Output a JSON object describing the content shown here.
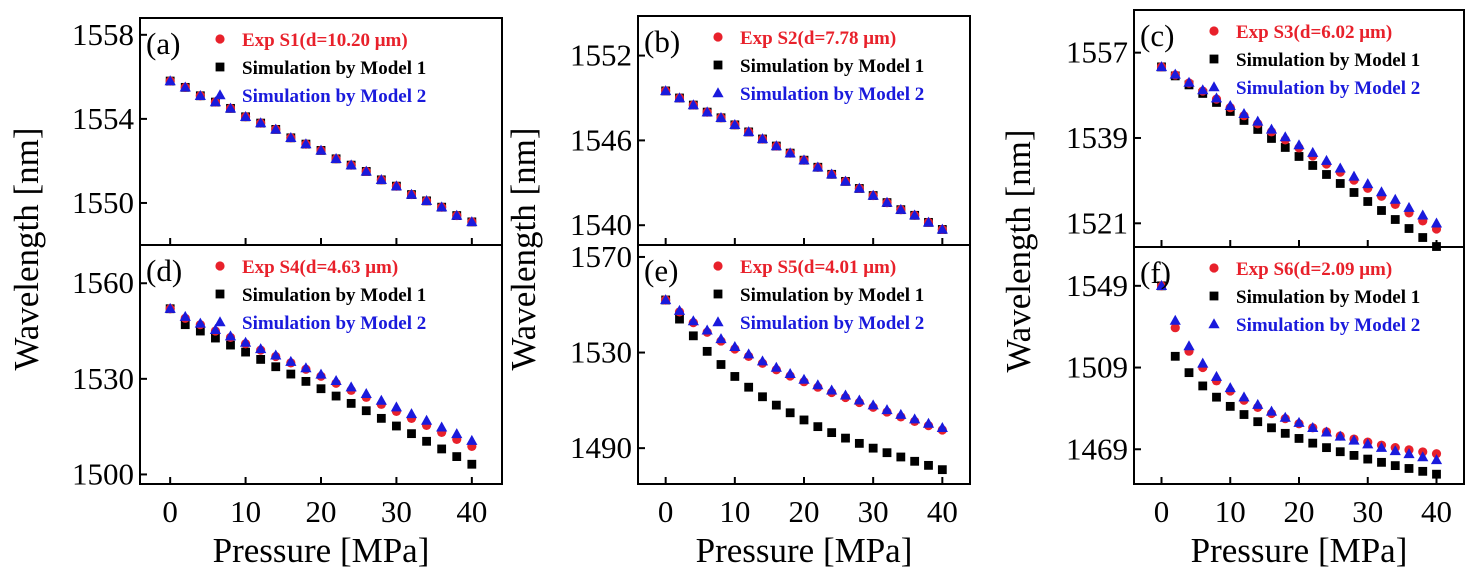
{
  "figure": {
    "xlabel": "Pressure [MPa]",
    "ylabel": "Wavelength [nm]",
    "series_names": [
      "Exp",
      "Simulation by Model 1",
      "Simulation by Model 2"
    ],
    "colors": {
      "exp": "#e8212b",
      "model1": "#000000",
      "model2": "#1a1adc"
    }
  },
  "chart_data": [
    {
      "type": "scatter",
      "panel": "(a)",
      "xlabel": "Pressure [MPa]",
      "ylabel": "Wavelength [nm]",
      "legend": [
        "Exp S1(d=10.20 μm)",
        "Simulation by Model 1",
        "Simulation by Model 2"
      ],
      "xlim": [
        -4,
        44
      ],
      "ylim": [
        1548,
        1558.8
      ],
      "xticks": [
        0,
        10,
        20,
        30,
        40
      ],
      "yticks": [
        1550,
        1554,
        1558
      ],
      "x": [
        0,
        2,
        4,
        6,
        8,
        10,
        12,
        14,
        16,
        18,
        20,
        22,
        24,
        26,
        28,
        30,
        32,
        34,
        36,
        38,
        40
      ],
      "series": [
        {
          "name": "Exp",
          "values": [
            1555.8,
            1555.5,
            1555.1,
            1554.8,
            1554.5,
            1554.1,
            1553.8,
            1553.5,
            1553.1,
            1552.8,
            1552.5,
            1552.1,
            1551.8,
            1551.5,
            1551.1,
            1550.8,
            1550.4,
            1550.1,
            1549.8,
            1549.4,
            1549.1
          ]
        },
        {
          "name": "Simulation by Model 1",
          "values": [
            1555.8,
            1555.5,
            1555.1,
            1554.8,
            1554.5,
            1554.1,
            1553.8,
            1553.5,
            1553.1,
            1552.8,
            1552.5,
            1552.1,
            1551.8,
            1551.5,
            1551.1,
            1550.8,
            1550.4,
            1550.1,
            1549.8,
            1549.4,
            1549.1
          ]
        },
        {
          "name": "Simulation by Model 2",
          "values": [
            1555.8,
            1555.5,
            1555.1,
            1554.8,
            1554.5,
            1554.1,
            1553.8,
            1553.5,
            1553.1,
            1552.8,
            1552.5,
            1552.1,
            1551.8,
            1551.5,
            1551.1,
            1550.8,
            1550.4,
            1550.1,
            1549.8,
            1549.4,
            1549.1
          ]
        }
      ]
    },
    {
      "type": "scatter",
      "panel": "(b)",
      "xlabel": "Pressure [MPa]",
      "ylabel": "Wavelength [nm]",
      "legend": [
        "Exp S2(d=7.78 μm)",
        "Simulation by Model 1",
        "Simulation by Model 2"
      ],
      "xlim": [
        -4,
        44
      ],
      "ylim": [
        1538.6,
        1554.8
      ],
      "xticks": [
        0,
        10,
        20,
        30,
        40
      ],
      "yticks": [
        1540,
        1546,
        1552
      ],
      "x": [
        0,
        2,
        4,
        6,
        8,
        10,
        12,
        14,
        16,
        18,
        20,
        22,
        24,
        26,
        28,
        30,
        32,
        34,
        36,
        38,
        40
      ],
      "series": [
        {
          "name": "Exp",
          "values": [
            1549.5,
            1549.0,
            1548.5,
            1548.0,
            1547.6,
            1547.1,
            1546.6,
            1546.1,
            1545.6,
            1545.1,
            1544.6,
            1544.1,
            1543.6,
            1543.1,
            1542.6,
            1542.1,
            1541.6,
            1541.1,
            1540.7,
            1540.2,
            1539.7
          ]
        },
        {
          "name": "Simulation by Model 1",
          "values": [
            1549.5,
            1549.0,
            1548.5,
            1548.0,
            1547.6,
            1547.1,
            1546.6,
            1546.1,
            1545.6,
            1545.1,
            1544.6,
            1544.1,
            1543.6,
            1543.1,
            1542.6,
            1542.1,
            1541.6,
            1541.1,
            1540.7,
            1540.2,
            1539.7
          ]
        },
        {
          "name": "Simulation by Model 2",
          "values": [
            1549.5,
            1549.0,
            1548.5,
            1548.0,
            1547.6,
            1547.1,
            1546.6,
            1546.1,
            1545.6,
            1545.1,
            1544.6,
            1544.1,
            1543.6,
            1543.1,
            1542.6,
            1542.1,
            1541.6,
            1541.1,
            1540.7,
            1540.2,
            1539.7
          ]
        }
      ]
    },
    {
      "type": "scatter",
      "panel": "(c)",
      "xlabel": "Pressure [MPa]",
      "ylabel": "Wavelength [nm]",
      "legend": [
        "Exp S3(d=6.02 μm)",
        "Simulation by Model 1",
        "Simulation by Model 2"
      ],
      "xlim": [
        -4,
        44
      ],
      "ylim": [
        1516,
        1566
      ],
      "xticks": [
        0,
        10,
        20,
        30,
        40
      ],
      "yticks": [
        1521,
        1539,
        1557
      ],
      "x": [
        0,
        2,
        4,
        6,
        8,
        10,
        12,
        14,
        16,
        18,
        20,
        22,
        24,
        26,
        28,
        30,
        32,
        34,
        36,
        38,
        40
      ],
      "series": [
        {
          "name": "Exp",
          "values": [
            1554.0,
            1552.3,
            1550.6,
            1548.9,
            1547.2,
            1545.4,
            1543.7,
            1542.0,
            1540.3,
            1538.6,
            1536.9,
            1535.2,
            1533.5,
            1531.8,
            1530.1,
            1528.4,
            1526.7,
            1525.0,
            1523.2,
            1521.5,
            1519.8
          ]
        },
        {
          "name": "Simulation by Model 1",
          "values": [
            1554.0,
            1552.1,
            1550.2,
            1548.4,
            1546.5,
            1544.6,
            1542.7,
            1540.8,
            1538.9,
            1537.0,
            1535.1,
            1533.2,
            1531.3,
            1529.4,
            1527.5,
            1525.6,
            1523.7,
            1521.8,
            1519.9,
            1518.0,
            1516.1
          ]
        },
        {
          "name": "Simulation by Model 2",
          "values": [
            1554.0,
            1552.4,
            1550.7,
            1549.1,
            1547.4,
            1545.8,
            1544.1,
            1542.5,
            1540.8,
            1539.2,
            1537.5,
            1535.9,
            1534.2,
            1532.6,
            1530.9,
            1529.3,
            1527.6,
            1526.0,
            1524.3,
            1522.7,
            1521.0
          ]
        }
      ]
    },
    {
      "type": "scatter",
      "panel": "(d)",
      "xlabel": "Pressure [MPa]",
      "ylabel": "Wavelength [nm]",
      "legend": [
        "Exp S4(d=4.63 μm)",
        "Simulation by Model 1",
        "Simulation by Model 2"
      ],
      "xlim": [
        -4,
        44
      ],
      "ylim": [
        1497,
        1572
      ],
      "xticks": [
        0,
        10,
        20,
        30,
        40
      ],
      "yticks": [
        1500,
        1530,
        1560
      ],
      "x": [
        0,
        2,
        4,
        6,
        8,
        10,
        12,
        14,
        16,
        18,
        20,
        22,
        24,
        26,
        28,
        30,
        32,
        34,
        36,
        38,
        40
      ],
      "series": [
        {
          "name": "Exp",
          "values": [
            1552.0,
            1549.0,
            1547.0,
            1545.0,
            1543.0,
            1541.0,
            1539.0,
            1537.0,
            1535.0,
            1533.0,
            1530.8,
            1528.6,
            1526.4,
            1524.2,
            1522.0,
            1519.8,
            1517.6,
            1515.4,
            1513.2,
            1511.0,
            1508.8
          ]
        },
        {
          "name": "Simulation by Model 1",
          "values": [
            1552.0,
            1547.0,
            1545.0,
            1542.8,
            1540.6,
            1538.4,
            1536.1,
            1533.8,
            1531.5,
            1529.2,
            1526.9,
            1524.6,
            1522.3,
            1520.0,
            1517.6,
            1515.2,
            1512.8,
            1510.4,
            1508.0,
            1505.6,
            1503.2
          ]
        },
        {
          "name": "Simulation by Model 2",
          "values": [
            1552.0,
            1549.5,
            1547.4,
            1545.4,
            1543.4,
            1541.4,
            1539.4,
            1537.4,
            1535.4,
            1533.4,
            1531.4,
            1529.4,
            1527.4,
            1525.3,
            1523.2,
            1521.1,
            1519.0,
            1516.9,
            1514.8,
            1512.7,
            1510.6
          ]
        }
      ]
    },
    {
      "type": "scatter",
      "panel": "(e)",
      "xlabel": "Pressure [MPa]",
      "ylabel": "Wavelength [nm]",
      "legend": [
        "Exp S5(d=4.01 μm)",
        "Simulation by Model 1",
        "Simulation by Model 2"
      ],
      "xlim": [
        -4,
        44
      ],
      "ylim": [
        1475,
        1575
      ],
      "xticks": [
        0,
        10,
        20,
        30,
        40
      ],
      "yticks": [
        1490,
        1530,
        1570
      ],
      "x": [
        0,
        2,
        4,
        6,
        8,
        10,
        12,
        14,
        16,
        18,
        20,
        22,
        24,
        26,
        28,
        30,
        32,
        34,
        36,
        38,
        40
      ],
      "series": [
        {
          "name": "Exp",
          "values": [
            1552.0,
            1547.0,
            1542.5,
            1538.5,
            1534.8,
            1531.5,
            1528.4,
            1525.5,
            1522.8,
            1520.2,
            1517.8,
            1515.5,
            1513.3,
            1511.2,
            1509.1,
            1507.1,
            1505.1,
            1503.1,
            1501.2,
            1499.4,
            1497.6
          ]
        },
        {
          "name": "Simulation by Model 1",
          "values": [
            1552.0,
            1544.0,
            1537.0,
            1530.5,
            1525.0,
            1520.0,
            1515.5,
            1511.5,
            1508.0,
            1504.8,
            1501.8,
            1499.0,
            1496.5,
            1494.2,
            1492.0,
            1490.0,
            1488.1,
            1486.3,
            1484.5,
            1482.8,
            1481.0
          ]
        },
        {
          "name": "Simulation by Model 2",
          "values": [
            1552.0,
            1547.5,
            1543.2,
            1539.3,
            1535.7,
            1532.4,
            1529.3,
            1526.4,
            1523.7,
            1521.1,
            1518.7,
            1516.4,
            1514.2,
            1512.1,
            1510.0,
            1508.0,
            1506.0,
            1504.0,
            1502.1,
            1500.3,
            1498.5
          ]
        }
      ]
    },
    {
      "type": "scatter",
      "panel": "(f)",
      "xlabel": "Pressure [MPa]",
      "ylabel": "Wavelength [nm]",
      "legend": [
        "Exp S6(d=2.09 μm)",
        "Simulation by Model 1",
        "Simulation by Model 2"
      ],
      "xlim": [
        -4,
        44
      ],
      "ylim": [
        1452,
        1568
      ],
      "xticks": [
        0,
        10,
        20,
        30,
        40
      ],
      "yticks": [
        1469,
        1509,
        1549
      ],
      "x": [
        0,
        2,
        4,
        6,
        8,
        10,
        12,
        14,
        16,
        18,
        20,
        22,
        24,
        26,
        28,
        30,
        32,
        34,
        36,
        38,
        40
      ],
      "series": [
        {
          "name": "Exp",
          "values": [
            1549.0,
            1528.5,
            1517.0,
            1509.0,
            1502.5,
            1497.5,
            1493.0,
            1489.5,
            1486.5,
            1484.0,
            1481.5,
            1479.5,
            1477.5,
            1475.5,
            1474.0,
            1472.5,
            1471.0,
            1469.8,
            1468.7,
            1467.7,
            1466.8
          ]
        },
        {
          "name": "Simulation by Model 1",
          "values": [
            1549.0,
            1514.5,
            1506.5,
            1500.0,
            1494.5,
            1490.0,
            1486.0,
            1482.5,
            1479.5,
            1476.8,
            1474.3,
            1472.0,
            1469.8,
            1467.8,
            1466.0,
            1464.2,
            1462.6,
            1461.0,
            1459.6,
            1458.2,
            1456.8
          ]
        },
        {
          "name": "Simulation by Model 2",
          "values": [
            1549.0,
            1532.0,
            1519.5,
            1511.0,
            1504.5,
            1499.0,
            1494.5,
            1490.8,
            1487.5,
            1484.5,
            1482.0,
            1479.5,
            1477.3,
            1475.3,
            1473.3,
            1471.5,
            1469.8,
            1468.2,
            1466.7,
            1465.2,
            1463.8
          ]
        }
      ]
    }
  ]
}
